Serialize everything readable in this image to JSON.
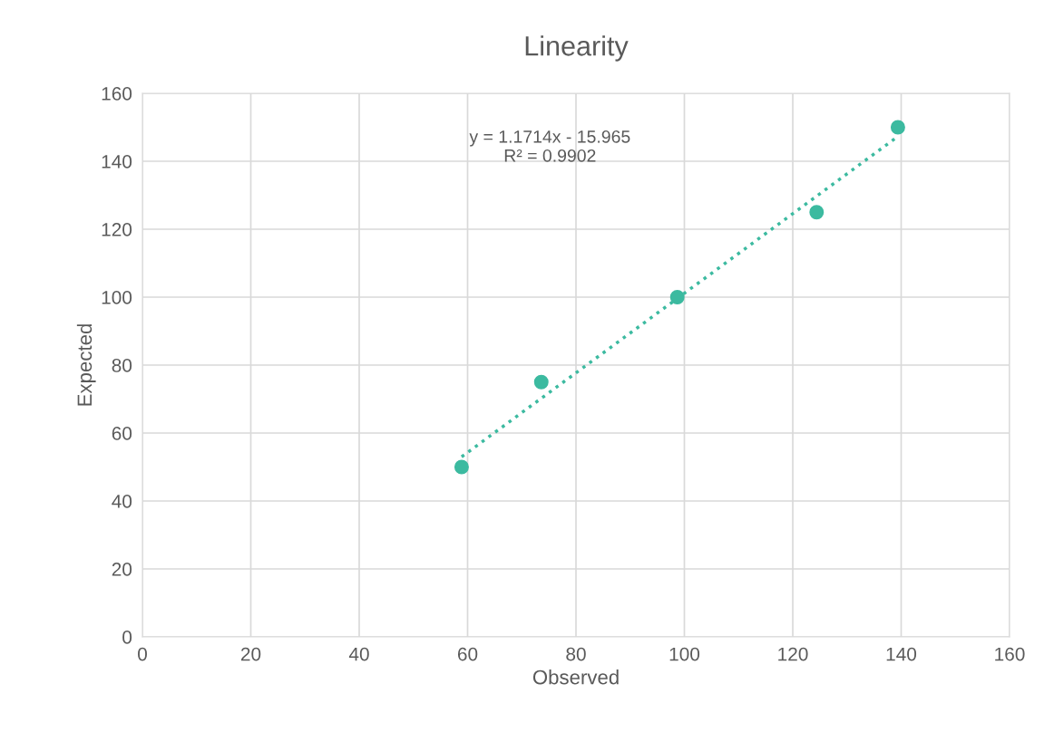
{
  "chart_data": {
    "type": "scatter",
    "title": "Linearity",
    "xlabel": "Observed",
    "ylabel": "Expected",
    "xlim": [
      0,
      160
    ],
    "xticks": [
      0,
      20,
      40,
      60,
      80,
      100,
      120,
      140,
      160
    ],
    "ylim": [
      0,
      160
    ],
    "yticks": [
      0,
      20,
      40,
      60,
      80,
      100,
      120,
      140,
      160
    ],
    "grid": true,
    "legend": false,
    "marker": "circle",
    "series": [
      {
        "color": "#3cbaa0",
        "x": [
          58.9,
          73.6,
          98.7,
          124.4,
          139.4
        ],
        "values": [
          50,
          75,
          100,
          125,
          150
        ]
      },
      {
        "type": "line",
        "color": "#3cbaa0",
        "line_style": "dotted",
        "marker": "none",
        "x": [
          58.9,
          139.4
        ],
        "values": [
          53.0,
          147.3
        ]
      }
    ],
    "annotations": [
      "y = 1.1714x - 15.965\nR² = 0.9902"
    ]
  }
}
